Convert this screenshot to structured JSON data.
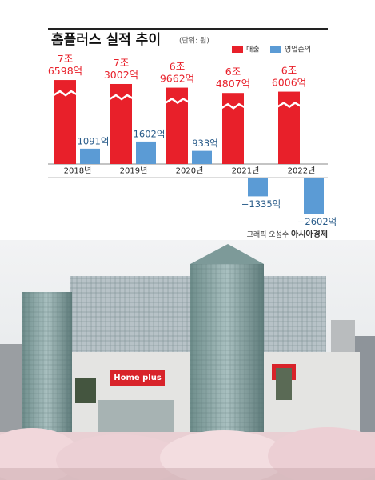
{
  "chart_data": {
    "type": "bar",
    "title": "홈플러스 실적 추이",
    "subtitle": "(단위: 원)",
    "categories": [
      "2018년",
      "2019년",
      "2020년",
      "2021년",
      "2022년"
    ],
    "series": [
      {
        "name": "매출",
        "color": "#e8202a",
        "axis": "y2",
        "values": [
          76598,
          73002,
          69662,
          64807,
          66006
        ],
        "value_labels": [
          "7조 6598억",
          "7조 3002억",
          "6조 9662억",
          "6조 4807억",
          "6조 6006억"
        ]
      },
      {
        "name": "영업손익",
        "color": "#5b9bd5",
        "values": [
          1091,
          1602,
          933,
          -1335,
          -2602
        ],
        "value_labels": [
          "1091억",
          "1602억",
          "933억",
          "−1335억",
          "−2602억"
        ]
      }
    ],
    "ylim": [
      -3000,
      5500
    ],
    "y2lim": [
      0,
      100000
    ],
    "legend": "top-right"
  },
  "credit": {
    "text": "그래픽 오성수",
    "brand": "아시아경제"
  },
  "photo": {
    "sign": "Home plus"
  }
}
